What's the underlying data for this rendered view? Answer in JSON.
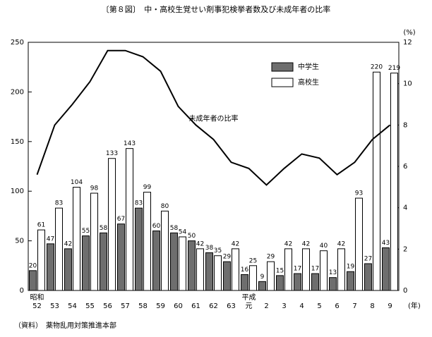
{
  "chart_data": {
    "type": "bar-line",
    "title": "〔第８図〕　中・高校生覚せい剤事犯検挙者数及び未成年者の比率",
    "source": "（資料）　薬物乱用対策推進本部",
    "categories": [
      "52",
      "53",
      "54",
      "55",
      "56",
      "57",
      "58",
      "59",
      "60",
      "61",
      "62",
      "63",
      "元",
      "2",
      "3",
      "4",
      "5",
      "6",
      "7",
      "8",
      "9"
    ],
    "era_labels": [
      "昭和",
      "平成"
    ],
    "x_unit": "(年)",
    "y2_unit": "(%)",
    "series": [
      {
        "name": "中学生",
        "color": "#6e6e6e",
        "values": [
          20,
          47,
          42,
          55,
          58,
          67,
          83,
          60,
          58,
          50,
          38,
          29,
          16,
          9,
          15,
          17,
          17,
          13,
          19,
          27,
          43
        ]
      },
      {
        "name": "高校生",
        "color": "#ffffff",
        "values": [
          61,
          83,
          104,
          98,
          133,
          143,
          99,
          80,
          54,
          42,
          35,
          42,
          25,
          29,
          42,
          42,
          40,
          42,
          93,
          220,
          219
        ]
      },
      {
        "name": "未成年者の比率",
        "color": "#000000",
        "axis": "y2",
        "type": "line",
        "values": [
          5.6,
          8.0,
          9.0,
          10.1,
          11.6,
          11.6,
          11.3,
          10.6,
          8.9,
          8.0,
          7.3,
          6.2,
          5.9,
          5.1,
          5.9,
          6.6,
          6.4,
          5.6,
          6.2,
          7.3,
          8.0
        ]
      }
    ],
    "ylim": [
      0,
      250
    ],
    "yticks": [
      0,
      50,
      100,
      150,
      200,
      250
    ],
    "y2lim": [
      0,
      12
    ],
    "y2ticks": [
      0,
      2,
      4,
      6,
      8,
      10,
      12
    ],
    "legend": "upper right"
  }
}
